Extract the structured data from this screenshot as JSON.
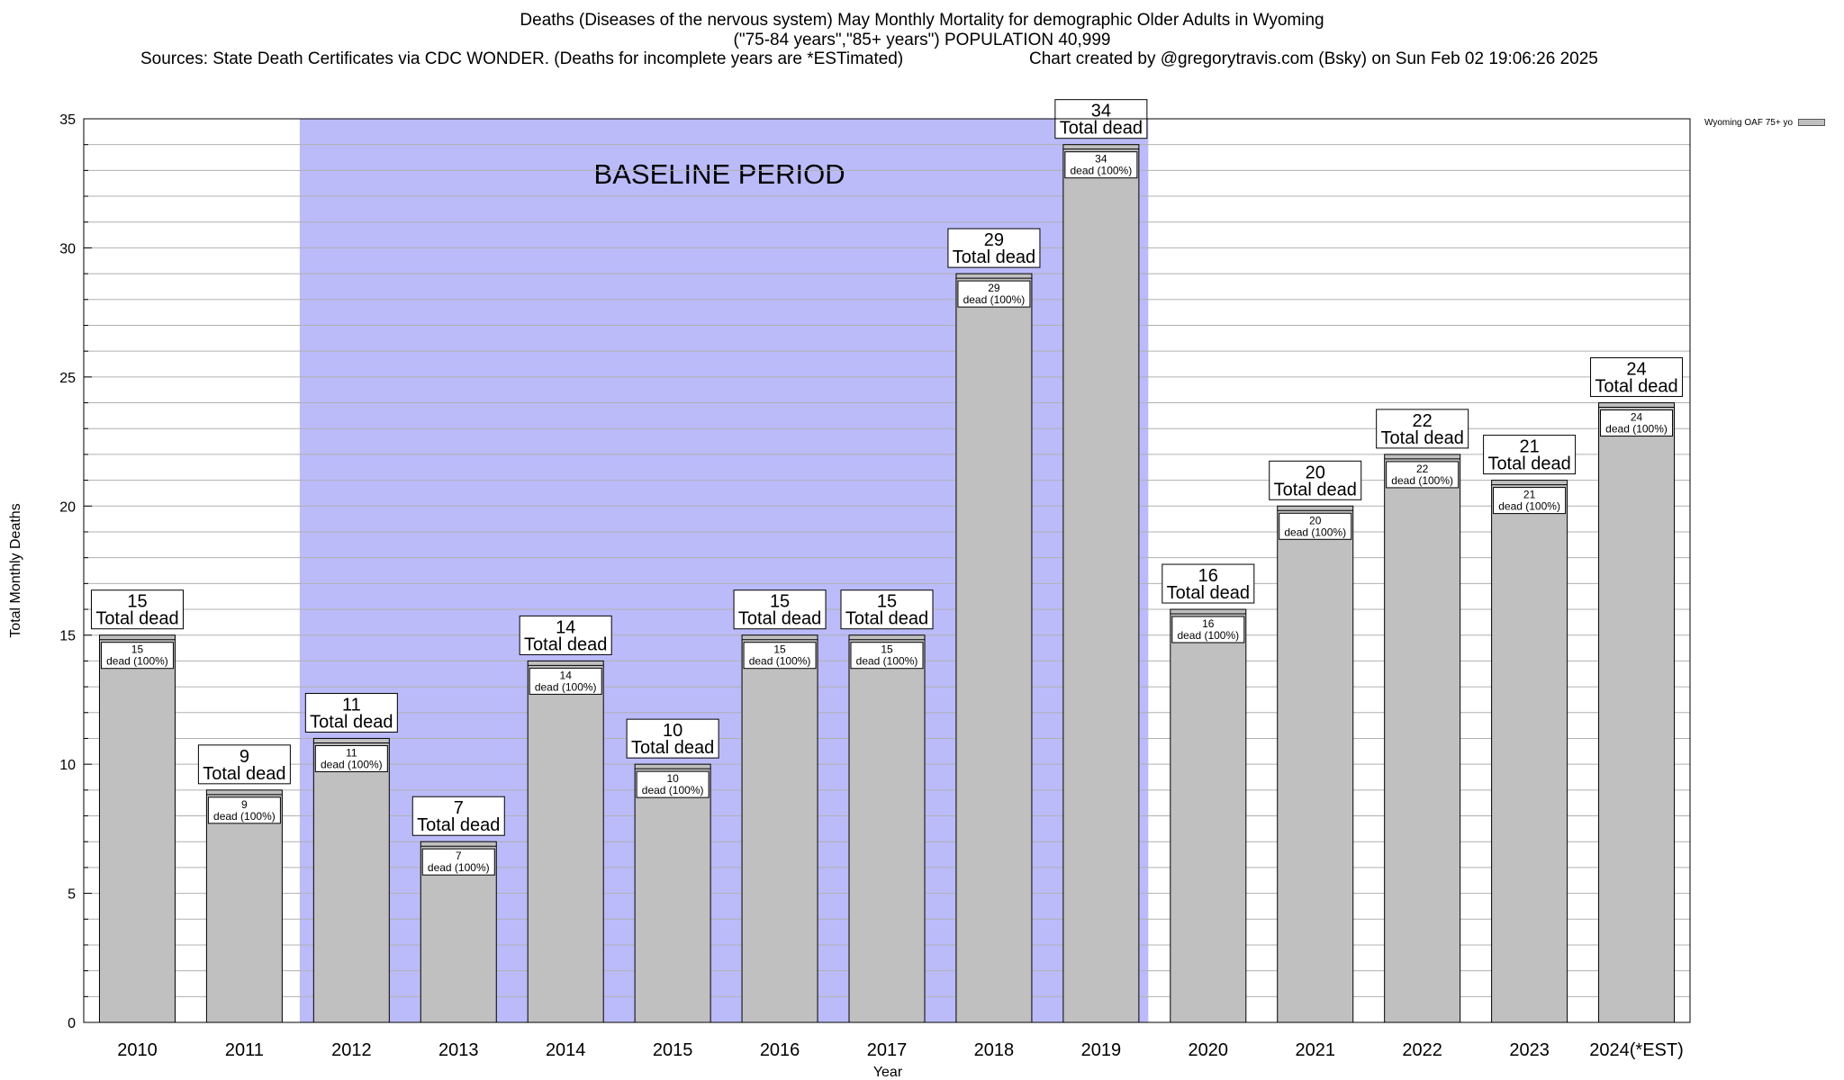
{
  "chart_data": {
    "type": "bar",
    "title_lines": [
      "Deaths (Diseases of the nervous system) May Monthly Mortality for demographic Older Adults in Wyoming",
      "(\"75-84 years\",\"85+ years\") POPULATION 40,999"
    ],
    "source_left": "Sources: State Death Certificates via CDC WONDER. (Deaths for incomplete years are *ESTimated)",
    "source_right": "Chart created by @gregorytravis.com (Bsky) on Sun Feb 02 19:06:26 2025",
    "xlabel": "Year",
    "ylabel": "Total Monthly Deaths",
    "ylim": [
      0,
      35
    ],
    "yticks": [
      0,
      5,
      10,
      15,
      20,
      25,
      30,
      35
    ],
    "categories": [
      "2010",
      "2011",
      "2012",
      "2013",
      "2014",
      "2015",
      "2016",
      "2017",
      "2018",
      "2019",
      "2020",
      "2021",
      "2022",
      "2023",
      "2024(*EST)"
    ],
    "values": [
      15,
      9,
      11,
      7,
      14,
      10,
      15,
      15,
      29,
      34,
      16,
      20,
      22,
      21,
      24
    ],
    "bar_label_suffix": "Total dead",
    "inner_label_suffix": "dead (100%)",
    "series": [
      {
        "name": "Wyoming OAF 75+ yo",
        "values": [
          15,
          9,
          11,
          7,
          14,
          10,
          15,
          15,
          29,
          34,
          16,
          20,
          22,
          21,
          24
        ]
      }
    ],
    "legend_position": "top-right",
    "grid": true,
    "baseline": {
      "label": "BASELINE PERIOD",
      "from": "2012",
      "to": "2019",
      "color": "#bbbbfa"
    },
    "bar_color": "#c0c0c0"
  }
}
